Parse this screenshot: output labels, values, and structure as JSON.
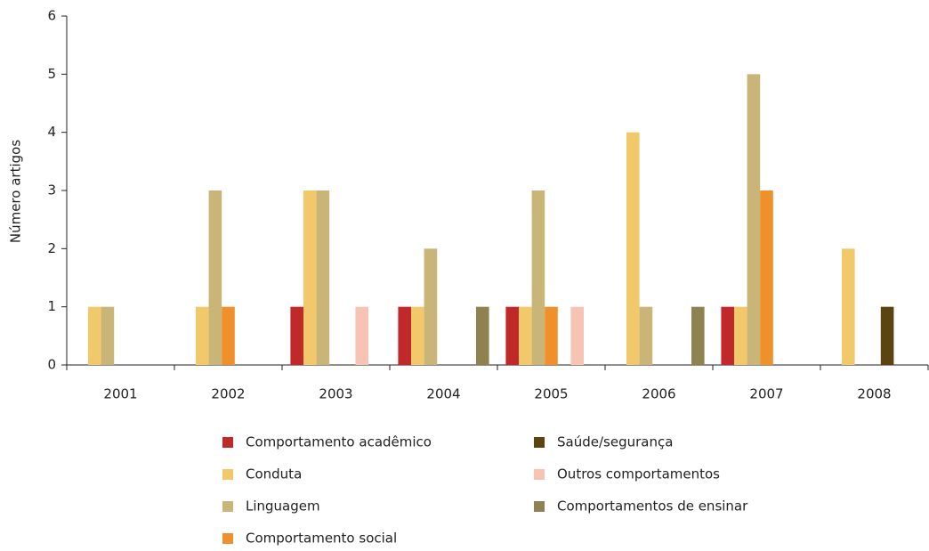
{
  "chart_data": {
    "type": "bar",
    "ylabel": "Número artigos",
    "categories": [
      "2001",
      "2002",
      "2003",
      "2004",
      "2005",
      "2006",
      "2007",
      "2008"
    ],
    "series": [
      {
        "name": "Comportamento acadêmico",
        "color": "#c0282a",
        "values": [
          0,
          0,
          1,
          1,
          1,
          0,
          1,
          0
        ]
      },
      {
        "name": "Conduta",
        "color": "#f2c96a",
        "values": [
          1,
          1,
          3,
          1,
          1,
          4,
          1,
          2
        ]
      },
      {
        "name": "Linguagem",
        "color": "#c8b577",
        "values": [
          1,
          3,
          3,
          2,
          3,
          1,
          5,
          0
        ]
      },
      {
        "name": "Comportamento social",
        "color": "#f0902a",
        "values": [
          0,
          1,
          0,
          0,
          1,
          0,
          3,
          0
        ]
      },
      {
        "name": "Saúde/segurança",
        "color": "#5b4412",
        "values": [
          0,
          0,
          0,
          0,
          0,
          0,
          0,
          1
        ]
      },
      {
        "name": "Outros comportamentos",
        "color": "#f7c4b4",
        "values": [
          0,
          0,
          1,
          0,
          1,
          0,
          0,
          0
        ]
      },
      {
        "name": "Comportamentos de ensinar",
        "color": "#8e8350",
        "values": [
          0,
          0,
          0,
          1,
          0,
          1,
          0,
          0
        ]
      }
    ],
    "ylim": [
      0,
      6
    ],
    "yticks": [
      0,
      1,
      2,
      3,
      4,
      5,
      6
    ],
    "grid": false
  }
}
